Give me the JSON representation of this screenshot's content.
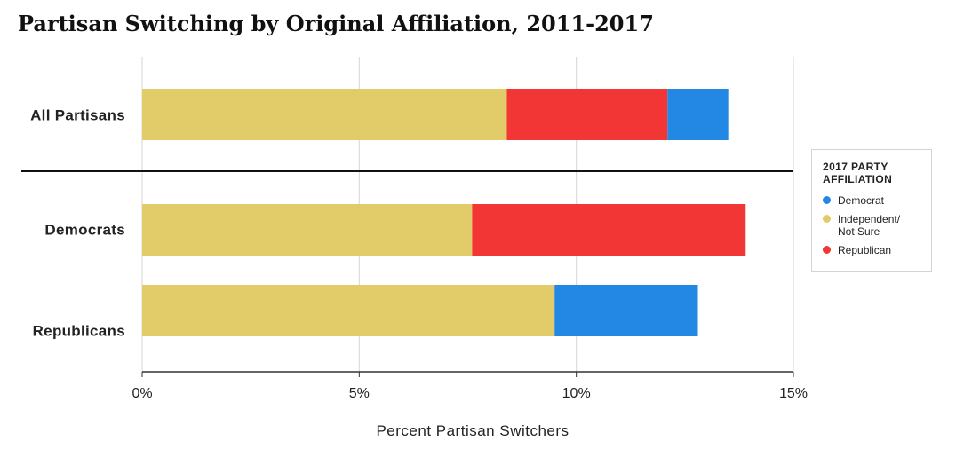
{
  "title": "Partisan Switching by Original Affiliation, 2011-2017",
  "legend": {
    "title": "2017 PARTY AFFILIATION",
    "items": [
      {
        "label": "Democrat",
        "color": "#2288e3"
      },
      {
        "label": "Independent/ Not Sure",
        "label_lines": [
          "Independent/",
          "Not Sure"
        ],
        "color": "#e2cc69"
      },
      {
        "label": "Republican",
        "color": "#f23535"
      }
    ]
  },
  "chart_data": {
    "type": "bar",
    "orientation": "horizontal",
    "stacked": true,
    "title": "Partisan Switching by Original Affiliation, 2011-2017",
    "xlabel": "Percent Partisan Switchers",
    "ylabel": "",
    "xlim": [
      0,
      15
    ],
    "x_ticks": [
      "0%",
      "5%",
      "10%",
      "15%"
    ],
    "grid": true,
    "legend_position": "right",
    "categories": [
      "All Partisans",
      "Democrats",
      "Republicans"
    ],
    "series": [
      {
        "name": "Independent/ Not Sure",
        "color": "#e2cc69",
        "values": [
          8.4,
          7.6,
          9.5
        ]
      },
      {
        "name": "Republican",
        "color": "#f23535",
        "values": [
          3.7,
          6.3,
          0
        ]
      },
      {
        "name": "Democrat",
        "color": "#2288e3",
        "values": [
          1.4,
          0,
          3.3
        ]
      }
    ]
  }
}
